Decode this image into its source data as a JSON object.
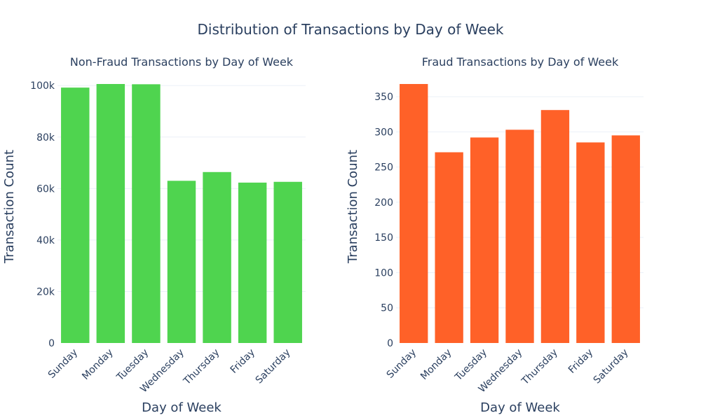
{
  "title": "Distribution of Transactions by Day of Week",
  "colors": {
    "nonfraud": "#4fd44f",
    "fraud": "#ff6128",
    "text": "#2a3f5f",
    "grid": "#ebf0f8"
  },
  "chart_data": [
    {
      "type": "bar",
      "title": "Non-Fraud Transactions by Day of Week",
      "xlabel": "Day of Week",
      "ylabel": "Transaction Count",
      "categories": [
        "Sunday",
        "Monday",
        "Tuesday",
        "Wednesday",
        "Thursday",
        "Friday",
        "Saturday"
      ],
      "values": [
        99200,
        100600,
        100500,
        63000,
        66400,
        62300,
        62600
      ],
      "ylim": [
        0,
        100600
      ],
      "yticks": [
        0,
        20000,
        40000,
        60000,
        80000,
        100000
      ],
      "yticklabels": [
        "0",
        "20k",
        "40k",
        "60k",
        "80k",
        "100k"
      ],
      "color": "#4fd44f",
      "grid": true
    },
    {
      "type": "bar",
      "title": "Fraud Transactions by Day of Week",
      "xlabel": "Day of Week",
      "ylabel": "Transaction Count",
      "categories": [
        "Sunday",
        "Monday",
        "Tuesday",
        "Wednesday",
        "Thursday",
        "Friday",
        "Saturday"
      ],
      "values": [
        368,
        271,
        292,
        303,
        331,
        285,
        295
      ],
      "ylim": [
        0,
        368
      ],
      "yticks": [
        0,
        50,
        100,
        150,
        200,
        250,
        300,
        350
      ],
      "yticklabels": [
        "0",
        "50",
        "100",
        "150",
        "200",
        "250",
        "300",
        "350"
      ],
      "color": "#ff6128",
      "grid": true
    }
  ]
}
